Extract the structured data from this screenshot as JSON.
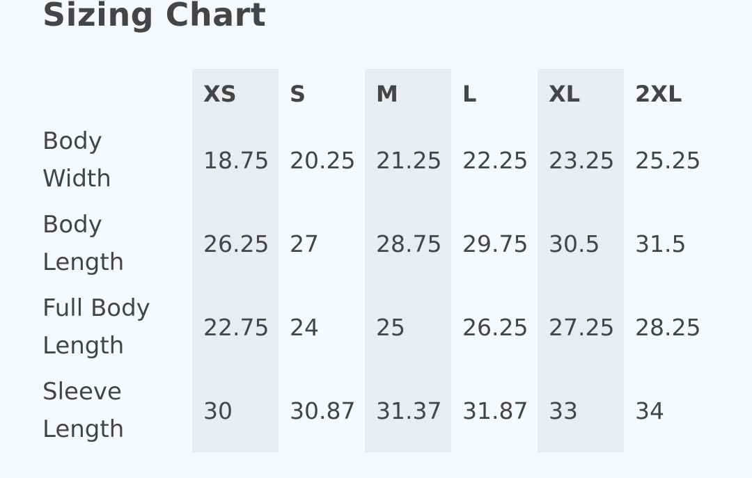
{
  "title": "Sizing Chart",
  "sizes": [
    "XS",
    "S",
    "M",
    "L",
    "XL",
    "2XL"
  ],
  "rows": [
    {
      "label": [
        "Body",
        "Width"
      ],
      "values": [
        "18.75",
        "20.25",
        "21.25",
        "22.25",
        "23.25",
        "25.25"
      ]
    },
    {
      "label": [
        "Body",
        "Length"
      ],
      "values": [
        "26.25",
        "27",
        "28.75",
        "29.75",
        "30.5",
        "31.5"
      ]
    },
    {
      "label": [
        "Full Body",
        "Length"
      ],
      "values": [
        "22.75",
        "24",
        "25",
        "26.25",
        "27.25",
        "28.25"
      ]
    },
    {
      "label": [
        "Sleeve",
        "Length"
      ],
      "values": [
        "30",
        "30.87",
        "31.37",
        "31.87",
        "33",
        "34"
      ]
    }
  ],
  "colors": {
    "background": "#f5f9fd",
    "shaded_column": "#e9edf1",
    "text": "#454545"
  }
}
